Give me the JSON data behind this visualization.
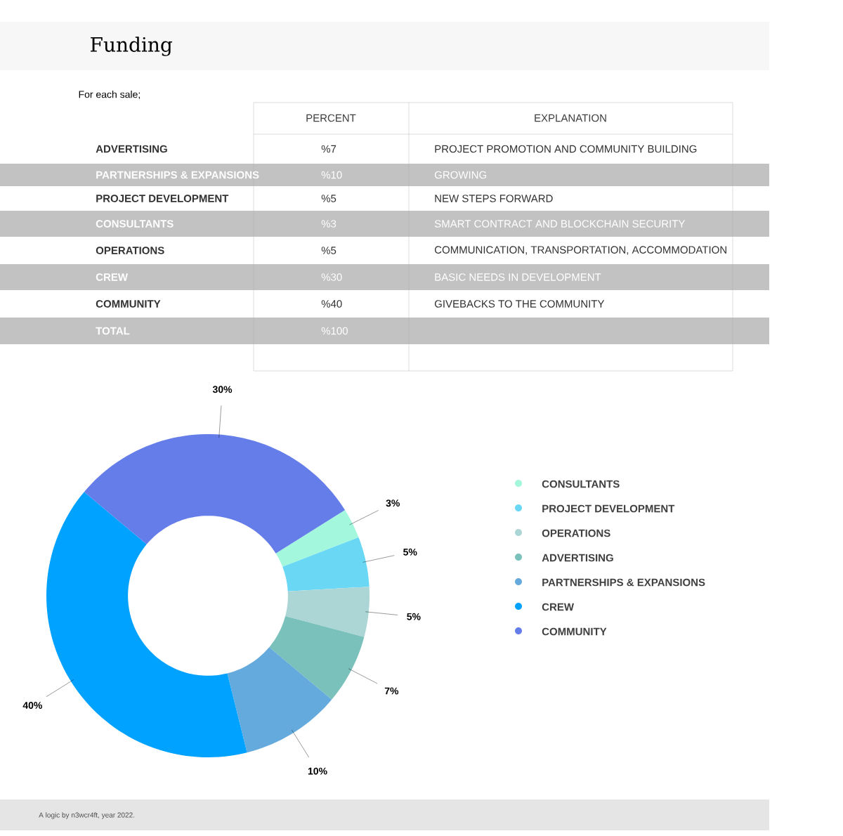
{
  "chart_data": {
    "type": "donut",
    "title": "Funding",
    "subtitle": "For each sale;",
    "categories": [
      "CONSULTANTS",
      "PROJECT DEVELOPMENT",
      "OPERATIONS",
      "ADVERTISING",
      "PARTNERSHIPS & EXPANSIONS",
      "CREW",
      "COMMUNITY"
    ],
    "values": [
      3,
      5,
      5,
      7,
      10,
      40,
      30
    ],
    "colors": [
      "#a3f7dc",
      "#6ad8f4",
      "#acd6d5",
      "#7ac1bb",
      "#65aadc",
      "#00a2ff",
      "#647de9"
    ],
    "value_labels": [
      "3%",
      "5%",
      "5%",
      "7%",
      "10%",
      "40%",
      "30%"
    ],
    "legend": "right",
    "annotations": [
      "PERCENT",
      "EXPLANATION",
      "ADVERTISING",
      "%7",
      "PROJECT PROMOTION AND COMMUNITY BUILDING",
      "PARTNERSHIPS & EXPANSIONS",
      "%10",
      "GROWING",
      "PROJECT DEVELOPMENT",
      "%5",
      "NEW STEPS FORWARD",
      "CONSULTANTS",
      "%3",
      "SMART CONTRACT AND BLOCKCHAIN SECURITY",
      "OPERATIONS",
      "%5",
      "COMMUNICATION, TRANSPORTATION, ACCOMMODATION",
      "CREW",
      "%30",
      "BASIC NEEDS IN DEVELOPMENT",
      "COMMUNITY",
      "%40",
      "GIVEBACKS TO THE COMMUNITY",
      "TOTAL",
      "%100",
      "A logic by n3wcr4ft, year 2022."
    ]
  }
}
